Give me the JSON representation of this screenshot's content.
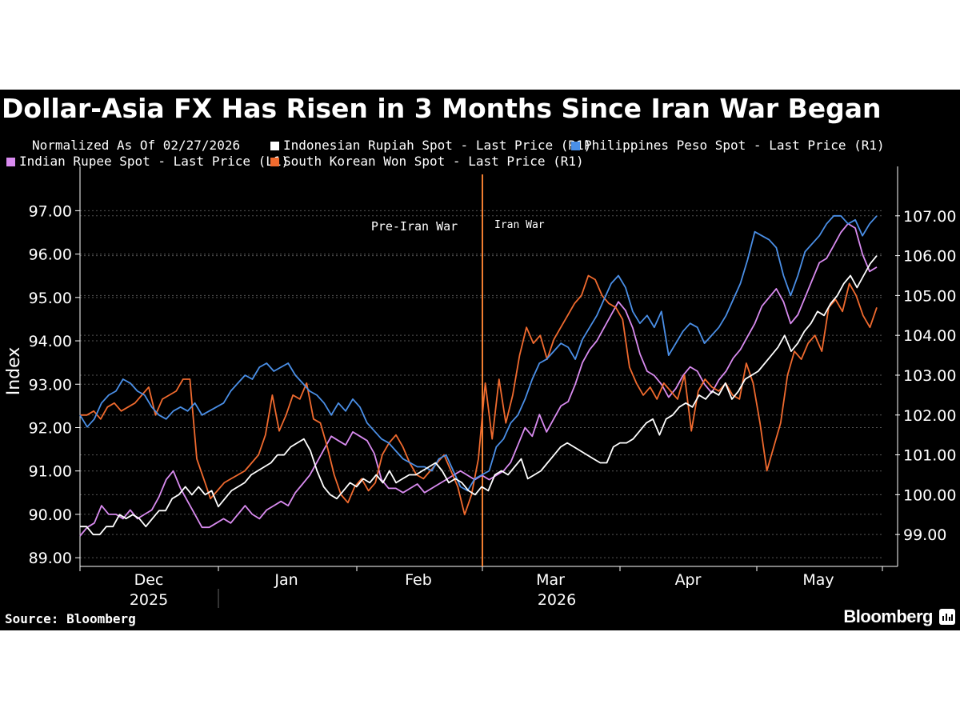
{
  "chart_data": {
    "type": "line",
    "title": "Dollar-Asia FX Has Risen in 3 Months Since Iran War Began",
    "subtitle": "Normalized As Of 02/27/2026",
    "ylabel": "Index",
    "ylim_left": [
      88.8,
      97.8
    ],
    "ylim_right": [
      98.2,
      108.0
    ],
    "left_ticks": [
      "89.00",
      "90.00",
      "91.00",
      "92.00",
      "93.00",
      "94.00",
      "95.00",
      "96.00",
      "97.00"
    ],
    "right_ticks": [
      "99.00",
      "100.00",
      "101.00",
      "102.00",
      "103.00",
      "104.00",
      "105.00",
      "106.00",
      "107.00"
    ],
    "x_labels": [
      "Dec",
      "Jan",
      "Feb",
      "Mar",
      "Apr",
      "May"
    ],
    "year_labels": [
      "2025",
      "2026"
    ],
    "grid": true,
    "legend_position": "top",
    "annotations": [
      {
        "text": "Pre-Iran War",
        "at": "mid-Feb"
      },
      {
        "text": "Iran War",
        "at": "end-Feb"
      }
    ],
    "event_line_color": "#f07d30",
    "series": [
      {
        "name": "Indonesian Rupiah Spot - Last Price (R1)",
        "axis": "right",
        "color": "#ffffff",
        "values": [
          99.2,
          99.2,
          99.0,
          99.0,
          99.2,
          99.2,
          99.5,
          99.4,
          99.5,
          99.4,
          99.2,
          99.4,
          99.6,
          99.6,
          99.9,
          100.0,
          100.2,
          100.0,
          100.2,
          100.0,
          100.1,
          99.7,
          99.9,
          100.1,
          100.2,
          100.3,
          100.5,
          100.6,
          100.7,
          100.8,
          101.0,
          101.0,
          101.2,
          101.3,
          101.4,
          101.1,
          100.6,
          100.2,
          100.0,
          99.9,
          100.1,
          100.3,
          100.2,
          100.4,
          100.3,
          100.5,
          100.3,
          100.6,
          100.3,
          100.4,
          100.5,
          100.5,
          100.6,
          100.7,
          100.8,
          100.6,
          100.3,
          100.4,
          100.3,
          100.1,
          100.0,
          100.2,
          100.1,
          100.5,
          100.6,
          100.5,
          100.7,
          100.9,
          100.4,
          100.5,
          100.6,
          100.8,
          101.0,
          101.2,
          101.3,
          101.2,
          101.1,
          101.0,
          100.9,
          100.8,
          100.8,
          101.2,
          101.3,
          101.3,
          101.4,
          101.6,
          101.8,
          101.9,
          101.5,
          101.9,
          102.0,
          102.2,
          102.3,
          102.2,
          102.5,
          102.4,
          102.6,
          102.5,
          102.8,
          102.4,
          102.6,
          102.9,
          103.0,
          103.1,
          103.3,
          103.5,
          103.7,
          104.0,
          103.6,
          103.8,
          104.1,
          104.3,
          104.6,
          104.5,
          104.8,
          105.0,
          105.3,
          105.5,
          105.2,
          105.5,
          105.8,
          106.0
        ]
      },
      {
        "name": "Philippines Peso Spot - Last Price (R1)",
        "axis": "right",
        "color": "#4a8fe7",
        "values": [
          102.0,
          101.7,
          101.9,
          102.3,
          102.5,
          102.6,
          102.9,
          102.8,
          102.6,
          102.5,
          102.2,
          102.0,
          101.9,
          102.1,
          102.2,
          102.1,
          102.3,
          102.0,
          102.1,
          102.2,
          102.3,
          102.6,
          102.8,
          103.0,
          102.9,
          103.2,
          103.3,
          103.1,
          103.2,
          103.3,
          103.0,
          102.8,
          102.6,
          102.5,
          102.3,
          102.0,
          102.3,
          102.1,
          102.4,
          102.2,
          101.8,
          101.6,
          101.4,
          101.3,
          101.1,
          100.9,
          100.8,
          100.7,
          100.7,
          100.6,
          100.9,
          101.0,
          100.6,
          100.2,
          100.1,
          100.4,
          100.5,
          100.6,
          101.2,
          101.4,
          101.8,
          102.0,
          102.4,
          102.9,
          103.3,
          103.4,
          103.6,
          103.8,
          103.7,
          103.4,
          103.9,
          104.2,
          104.5,
          104.9,
          105.3,
          105.5,
          105.2,
          104.6,
          104.3,
          104.5,
          104.2,
          104.6,
          103.5,
          103.8,
          104.1,
          104.3,
          104.2,
          103.8,
          104.0,
          104.2,
          104.5,
          104.9,
          105.3,
          105.9,
          106.6,
          106.5,
          106.4,
          106.2,
          105.5,
          105.0,
          105.5,
          106.1,
          106.3,
          106.5,
          106.8,
          107.0,
          107.0,
          106.8,
          106.9,
          106.5,
          106.8,
          107.0
        ]
      },
      {
        "name": "Indian Rupee Spot - Last Price (L1)",
        "axis": "left",
        "color": "#d98bf0",
        "values": [
          89.5,
          89.7,
          89.8,
          90.2,
          90.0,
          90.0,
          89.9,
          90.1,
          89.9,
          90.0,
          90.1,
          90.4,
          90.8,
          91.0,
          90.6,
          90.3,
          90.0,
          89.7,
          89.7,
          89.8,
          89.9,
          89.8,
          90.0,
          90.2,
          90.0,
          89.9,
          90.1,
          90.2,
          90.3,
          90.2,
          90.5,
          90.7,
          90.9,
          91.2,
          91.5,
          91.8,
          91.7,
          91.6,
          91.9,
          91.8,
          91.7,
          91.4,
          90.8,
          90.6,
          90.6,
          90.5,
          90.6,
          90.7,
          90.5,
          90.6,
          90.7,
          90.8,
          90.9,
          91.0,
          90.9,
          90.8,
          90.9,
          90.8,
          90.9,
          91.0,
          91.2,
          91.6,
          92.0,
          91.8,
          92.3,
          91.9,
          92.2,
          92.5,
          92.6,
          93.0,
          93.5,
          93.8,
          94.0,
          94.3,
          94.6,
          94.9,
          94.7,
          94.3,
          93.7,
          93.3,
          93.2,
          93.0,
          92.7,
          92.9,
          93.2,
          93.4,
          93.3,
          93.0,
          92.8,
          93.1,
          93.3,
          93.6,
          93.8,
          94.1,
          94.4,
          94.8,
          95.0,
          95.2,
          94.9,
          94.4,
          94.6,
          95.0,
          95.4,
          95.8,
          95.9,
          96.2,
          96.5,
          96.7,
          96.6,
          96.0,
          95.6,
          95.7
        ]
      },
      {
        "name": "South Korean Won Spot - Last Price (R1)",
        "axis": "right",
        "color": "#f06a2e",
        "values": [
          102.0,
          102.0,
          102.1,
          101.9,
          102.2,
          102.3,
          102.1,
          102.2,
          102.3,
          102.5,
          102.7,
          102.0,
          102.4,
          102.5,
          102.6,
          102.9,
          102.9,
          100.9,
          100.4,
          99.9,
          100.1,
          100.3,
          100.4,
          100.5,
          100.6,
          100.8,
          101.0,
          101.5,
          102.5,
          101.6,
          102.0,
          102.5,
          102.4,
          102.8,
          101.9,
          101.8,
          101.2,
          100.5,
          100.0,
          99.8,
          100.2,
          100.4,
          100.1,
          100.3,
          101.0,
          101.3,
          101.5,
          101.2,
          100.8,
          100.5,
          100.4,
          100.6,
          100.8,
          101.0,
          100.6,
          100.2,
          99.5,
          100.0,
          100.9,
          102.8,
          101.4,
          102.9,
          101.8,
          102.5,
          103.5,
          104.2,
          103.8,
          104.0,
          103.4,
          103.9,
          104.2,
          104.5,
          104.8,
          105.0,
          105.5,
          105.4,
          105.0,
          104.8,
          104.7,
          104.4,
          103.2,
          102.8,
          102.5,
          102.7,
          102.4,
          102.8,
          102.6,
          102.4,
          103.0,
          101.6,
          102.6,
          102.9,
          102.7,
          102.6,
          102.8,
          102.5,
          102.4,
          103.3,
          102.8,
          101.8,
          100.6,
          101.2,
          101.8,
          103.0,
          103.6,
          103.4,
          103.8,
          104.0,
          103.6,
          104.7,
          104.9,
          104.6,
          105.3,
          105.0,
          104.5,
          104.2,
          104.7
        ]
      }
    ]
  },
  "legend": [
    {
      "label": "Normalized As Of 02/27/2026",
      "color": ""
    },
    {
      "label": "Indonesian Rupiah Spot - Last Price (R1)",
      "color": "#ffffff"
    },
    {
      "label": "Philippines Peso Spot - Last Price (R1)",
      "color": "#4a8fe7"
    },
    {
      "label": "Indian Rupee Spot - Last Price (L1)",
      "color": "#d98bf0"
    },
    {
      "label": "South Korean Won Spot - Last Price (R1)",
      "color": "#f06a2e"
    }
  ],
  "footer": {
    "source": "Source: Bloomberg",
    "brand": "Bloomberg"
  },
  "colors": {
    "background": "#000000",
    "grid": "#555555",
    "text": "#ffffff"
  }
}
